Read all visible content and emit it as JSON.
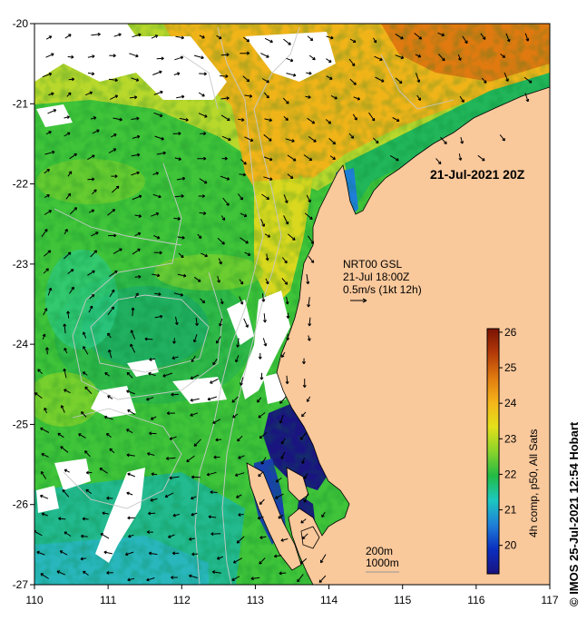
{
  "map": {
    "date_stamp": "21-Jul-2021 20Z",
    "current_source": "NRT00 GSL",
    "current_time": "21-Jul 18:00Z",
    "current_scale": "0.5m/s (1kt 12h)",
    "isobath_labels": [
      "200m",
      "1000m"
    ],
    "credit": "© IMOS 25-Jul-2021 12:54 Hobart",
    "colorbar_title": "4h comp, p50, All Sats",
    "land_color": "#f9c89b",
    "cloud_color": "#ffffff"
  },
  "axes": {
    "x_ticks": [
      "110",
      "111",
      "112",
      "113",
      "114",
      "115",
      "116",
      "117"
    ],
    "y_ticks": [
      "-20",
      "-21",
      "-22",
      "-23",
      "-24",
      "-25",
      "-26",
      "-27"
    ],
    "xlim": [
      110,
      117
    ],
    "ylim": [
      -27,
      -20
    ]
  },
  "colorbar": {
    "range": [
      19.2,
      26.1
    ],
    "ticks": [
      "20",
      "21",
      "22",
      "23",
      "24",
      "25",
      "26"
    ],
    "colors": [
      "#1a1480",
      "#0b2fc0",
      "#1f7fd8",
      "#1cc8c0",
      "#22bb44",
      "#8bd42a",
      "#e4e01a",
      "#f5b41a",
      "#e07a10",
      "#b43a08",
      "#7a1204"
    ]
  }
}
